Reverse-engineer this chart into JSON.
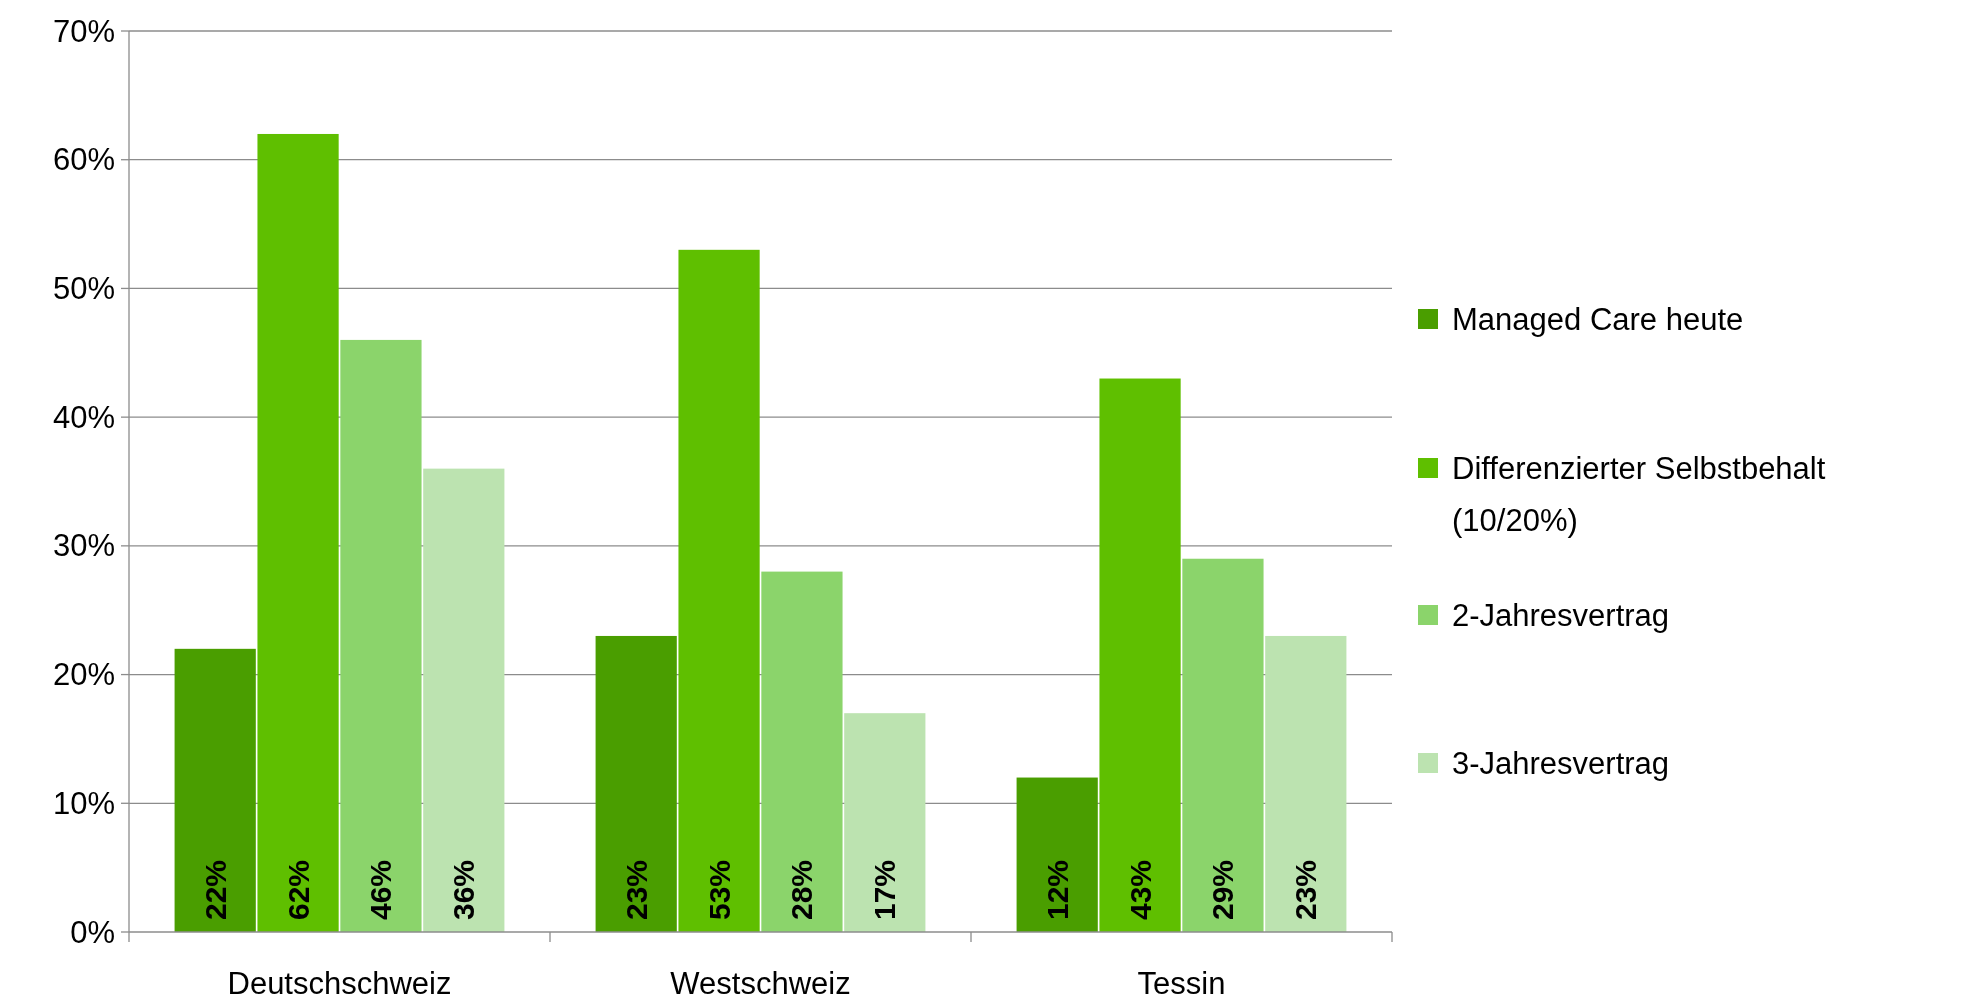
{
  "chart_data": {
    "type": "bar",
    "categories": [
      "Deutschschweiz",
      "Westschweiz",
      "Tessin"
    ],
    "series": [
      {
        "name": "Managed Care heute",
        "color": "#4a9e00",
        "values": [
          22,
          23,
          12
        ],
        "value_labels": [
          "22%",
          "23%",
          "12%"
        ]
      },
      {
        "name": "Differenzierter Selbstbehalt (10/20%)",
        "color": "#5fbf00",
        "values": [
          62,
          53,
          43
        ],
        "value_labels": [
          "62%",
          "53%",
          "43%"
        ]
      },
      {
        "name": "2-Jahresvertrag",
        "color": "#8bd46b",
        "values": [
          46,
          28,
          29
        ],
        "value_labels": [
          "46%",
          "28%",
          "29%"
        ]
      },
      {
        "name": "3-Jahresvertrag",
        "color": "#bce3b0",
        "values": [
          36,
          17,
          23
        ],
        "value_labels": [
          "36%",
          "17%",
          "23%"
        ]
      }
    ],
    "ylim": [
      0,
      70
    ],
    "yticks": [
      {
        "value": 0,
        "label": "0%"
      },
      {
        "value": 10,
        "label": "10%"
      },
      {
        "value": 20,
        "label": "20%"
      },
      {
        "value": 30,
        "label": "30%"
      },
      {
        "value": 40,
        "label": "40%"
      },
      {
        "value": 50,
        "label": "50%"
      },
      {
        "value": 60,
        "label": "60%"
      },
      {
        "value": 70,
        "label": "70%"
      }
    ],
    "grid": "y",
    "legend": "right"
  }
}
